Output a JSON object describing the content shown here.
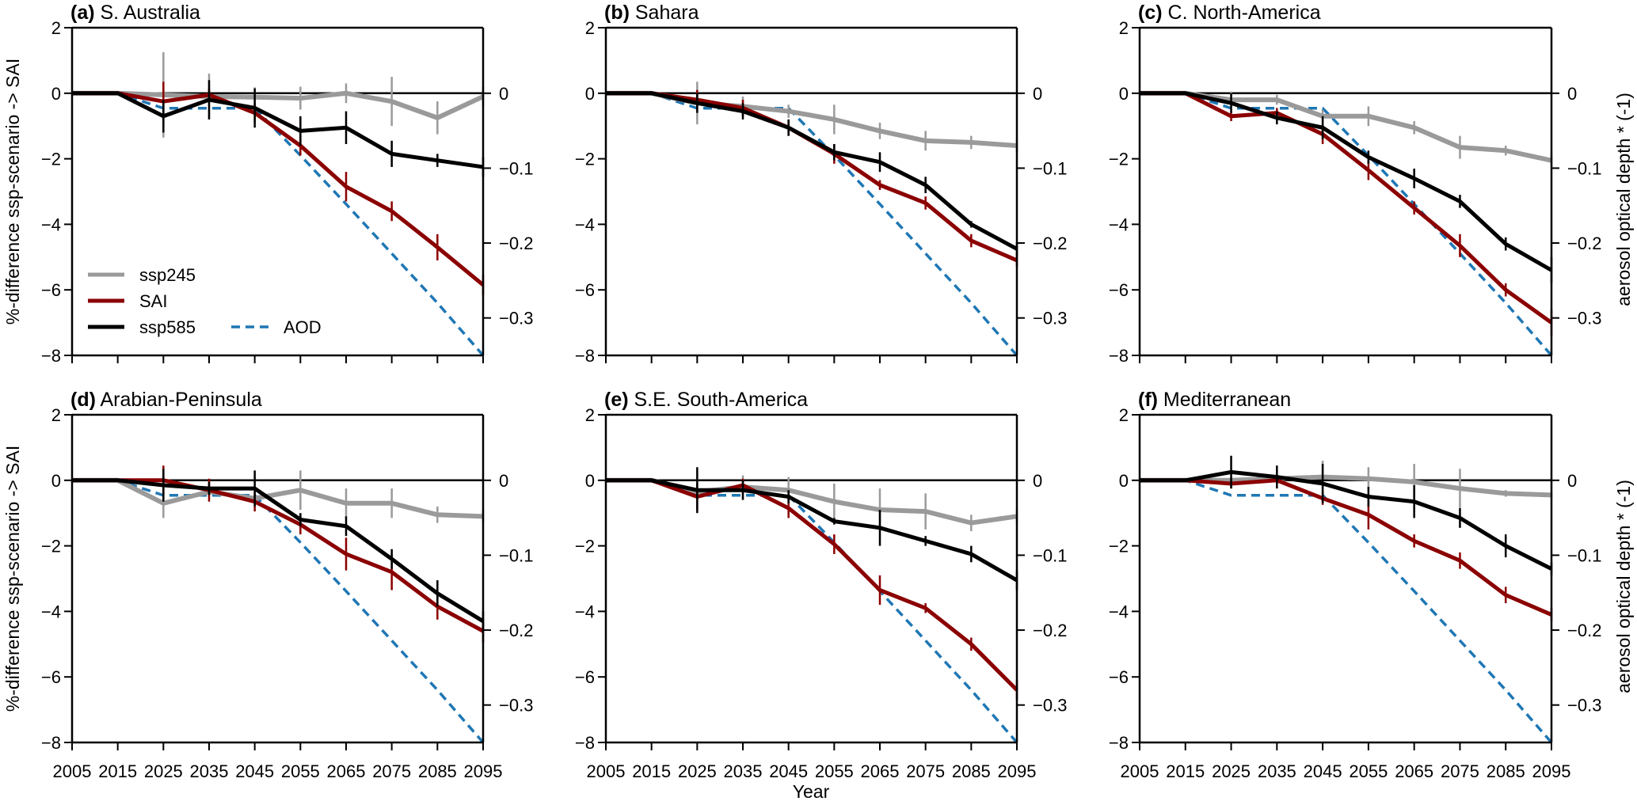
{
  "chart_data": {
    "type": "line",
    "xlabel": "Year",
    "ylabel_left": "%-difference ssp-scenario -> SAI",
    "ylabel_right": "aerosol optical depth * (-1)",
    "x": [
      2005,
      2015,
      2025,
      2035,
      2045,
      2055,
      2065,
      2075,
      2085,
      2095
    ],
    "x_tick_labels": [
      "2005",
      "2015",
      "2025",
      "2035",
      "2045",
      "2055",
      "2065",
      "2075",
      "2085",
      "2095"
    ],
    "ylim_left": [
      -8,
      2
    ],
    "y_ticks_left": [
      2,
      0,
      -2,
      -4,
      -6,
      -8
    ],
    "y_tick_labels_left": [
      "2",
      "0",
      "−2",
      "−4",
      "−6",
      "−8"
    ],
    "ylim_right": [
      -0.35,
      0.0875
    ],
    "y_ticks_right": [
      0,
      -0.1,
      -0.2,
      -0.3
    ],
    "y_tick_labels_right": [
      "0",
      "−0.1",
      "−0.2",
      "−0.3"
    ],
    "grid": false,
    "zero_line": true,
    "legend": {
      "placement": "bottom-left of panel (a)",
      "entries": [
        {
          "name": "ssp245",
          "color": "#9a9a9a",
          "style": "solid"
        },
        {
          "name": "SAI",
          "color": "#8b0000",
          "style": "solid"
        },
        {
          "name": "ssp585",
          "color": "#000000",
          "style": "solid"
        },
        {
          "name": "AOD",
          "color": "#1f77b4",
          "style": "dashed"
        }
      ]
    },
    "aod": [
      0,
      0,
      -0.02,
      -0.02,
      -0.02,
      -0.083,
      -0.148,
      -0.214,
      -0.28,
      -0.35
    ],
    "panels": [
      {
        "letter": "(a)",
        "title": "S. Australia",
        "series": [
          {
            "name": "ssp245",
            "values": [
              0,
              0,
              -0.05,
              -0.1,
              -0.12,
              -0.15,
              0.0,
              -0.25,
              -0.75,
              -0.1
            ],
            "errors": [
              0,
              0,
              1.3,
              0.7,
              0.3,
              0.35,
              0.3,
              0.75,
              0.5,
              0.3
            ]
          },
          {
            "name": "SAI",
            "values": [
              0,
              0,
              -0.25,
              -0.05,
              -0.6,
              -1.6,
              -2.85,
              -3.6,
              -4.7,
              -5.85
            ],
            "errors": [
              0,
              0,
              0.6,
              0.2,
              0.3,
              0.3,
              0.45,
              0.3,
              0.4,
              0.3
            ]
          },
          {
            "name": "ssp585",
            "values": [
              0,
              0,
              -0.7,
              -0.2,
              -0.45,
              -1.15,
              -1.05,
              -1.85,
              -2.05,
              -2.25
            ],
            "errors": [
              0,
              0,
              0.5,
              0.6,
              0.6,
              0.45,
              0.5,
              0.4,
              0.2,
              0.3
            ]
          }
        ]
      },
      {
        "letter": "(b)",
        "title": "Sahara",
        "series": [
          {
            "name": "ssp245",
            "values": [
              0,
              0,
              -0.3,
              -0.4,
              -0.55,
              -0.8,
              -1.15,
              -1.45,
              -1.5,
              -1.6
            ],
            "errors": [
              0,
              0,
              0.65,
              0.3,
              0.2,
              0.45,
              0.25,
              0.3,
              0.2,
              0.2
            ]
          },
          {
            "name": "SAI",
            "values": [
              0,
              0,
              -0.2,
              -0.45,
              -1.05,
              -1.85,
              -2.8,
              -3.35,
              -4.5,
              -5.1
            ],
            "errors": [
              0,
              0,
              0.3,
              0.25,
              0.25,
              0.3,
              0.15,
              0.2,
              0.2,
              0.2
            ]
          },
          {
            "name": "ssp585",
            "values": [
              0,
              0,
              -0.3,
              -0.55,
              -1.05,
              -1.8,
              -2.1,
              -2.8,
              -4.0,
              -4.75
            ],
            "errors": [
              0,
              0,
              0.3,
              0.25,
              0.25,
              0.25,
              0.3,
              0.25,
              0.1,
              0.2
            ]
          }
        ]
      },
      {
        "letter": "(c)",
        "title": "C. North-America",
        "series": [
          {
            "name": "ssp245",
            "values": [
              0,
              0,
              -0.2,
              -0.2,
              -0.7,
              -0.7,
              -1.05,
              -1.65,
              -1.75,
              -2.05
            ],
            "errors": [
              0,
              0,
              0.25,
              0.15,
              0.2,
              0.3,
              0.2,
              0.35,
              0.15,
              0.2
            ]
          },
          {
            "name": "SAI",
            "values": [
              0,
              0,
              -0.7,
              -0.6,
              -1.25,
              -2.35,
              -3.5,
              -4.65,
              -6.0,
              -7.0
            ],
            "errors": [
              0,
              0,
              0.15,
              0.15,
              0.3,
              0.3,
              0.2,
              0.35,
              0.2,
              0.4
            ]
          },
          {
            "name": "ssp585",
            "values": [
              0,
              0,
              -0.3,
              -0.75,
              -1.05,
              -1.95,
              -2.6,
              -3.3,
              -4.6,
              -5.4
            ],
            "errors": [
              0,
              0,
              0.3,
              0.2,
              0.35,
              0.2,
              0.3,
              0.2,
              0.2,
              0.4
            ]
          }
        ]
      },
      {
        "letter": "(d)",
        "title": "Arabian-Peninsula",
        "series": [
          {
            "name": "ssp245",
            "values": [
              0,
              0,
              -0.7,
              -0.35,
              -0.55,
              -0.3,
              -0.7,
              -0.7,
              -1.05,
              -1.1
            ],
            "errors": [
              0,
              0,
              0.45,
              0.2,
              0.2,
              0.6,
              0.45,
              0.45,
              0.25,
              0.2
            ]
          },
          {
            "name": "SAI",
            "values": [
              0,
              0,
              0.0,
              -0.3,
              -0.65,
              -1.35,
              -2.25,
              -2.8,
              -3.85,
              -4.6
            ],
            "errors": [
              0,
              0,
              0.45,
              0.35,
              0.3,
              0.3,
              0.5,
              0.55,
              0.4,
              0.35
            ]
          },
          {
            "name": "ssp585",
            "values": [
              0,
              0,
              -0.15,
              -0.25,
              -0.25,
              -1.2,
              -1.4,
              -2.4,
              -3.45,
              -4.3
            ],
            "errors": [
              0,
              0,
              0.5,
              0.2,
              0.55,
              0.2,
              0.3,
              0.3,
              0.4,
              0.3
            ]
          }
        ]
      },
      {
        "letter": "(e)",
        "title": "S.E. South-America",
        "series": [
          {
            "name": "ssp245",
            "values": [
              0,
              0,
              -0.35,
              -0.2,
              -0.3,
              -0.65,
              -0.9,
              -0.95,
              -1.3,
              -1.1
            ],
            "errors": [
              0,
              0,
              0.25,
              0.35,
              0.4,
              0.55,
              0.65,
              0.55,
              0.25,
              0.2
            ]
          },
          {
            "name": "SAI",
            "values": [
              0,
              0,
              -0.5,
              -0.15,
              -0.85,
              -1.95,
              -3.35,
              -3.9,
              -5.0,
              -6.4
            ],
            "errors": [
              0,
              0,
              0.4,
              0.2,
              0.3,
              0.3,
              0.45,
              0.15,
              0.2,
              0.3
            ]
          },
          {
            "name": "ssp585",
            "values": [
              0,
              0,
              -0.3,
              -0.3,
              -0.5,
              -1.25,
              -1.45,
              -1.85,
              -2.25,
              -3.05
            ],
            "errors": [
              0,
              0,
              0.7,
              0.3,
              0.2,
              0.1,
              0.55,
              0.15,
              0.25,
              0.3
            ]
          }
        ]
      },
      {
        "letter": "(f)",
        "title": "Mediterranean",
        "series": [
          {
            "name": "ssp245",
            "values": [
              0,
              0,
              0.0,
              0.05,
              0.1,
              0.05,
              -0.05,
              -0.25,
              -0.4,
              -0.45
            ],
            "errors": [
              0,
              0,
              0.1,
              0.1,
              0.5,
              0.35,
              0.55,
              0.6,
              0.1,
              0.1
            ]
          },
          {
            "name": "SAI",
            "values": [
              0,
              0,
              -0.1,
              0.0,
              -0.55,
              -1.05,
              -1.85,
              -2.45,
              -3.5,
              -4.1
            ],
            "errors": [
              0,
              0,
              0.15,
              0.1,
              0.2,
              0.45,
              0.2,
              0.25,
              0.25,
              0.2
            ]
          },
          {
            "name": "ssp585",
            "values": [
              0,
              0,
              0.25,
              0.1,
              -0.1,
              -0.5,
              -0.65,
              -1.15,
              -2.0,
              -2.7
            ],
            "errors": [
              0,
              0,
              0.5,
              0.35,
              0.6,
              0.3,
              0.5,
              0.3,
              0.35,
              0.2
            ]
          }
        ]
      }
    ]
  }
}
